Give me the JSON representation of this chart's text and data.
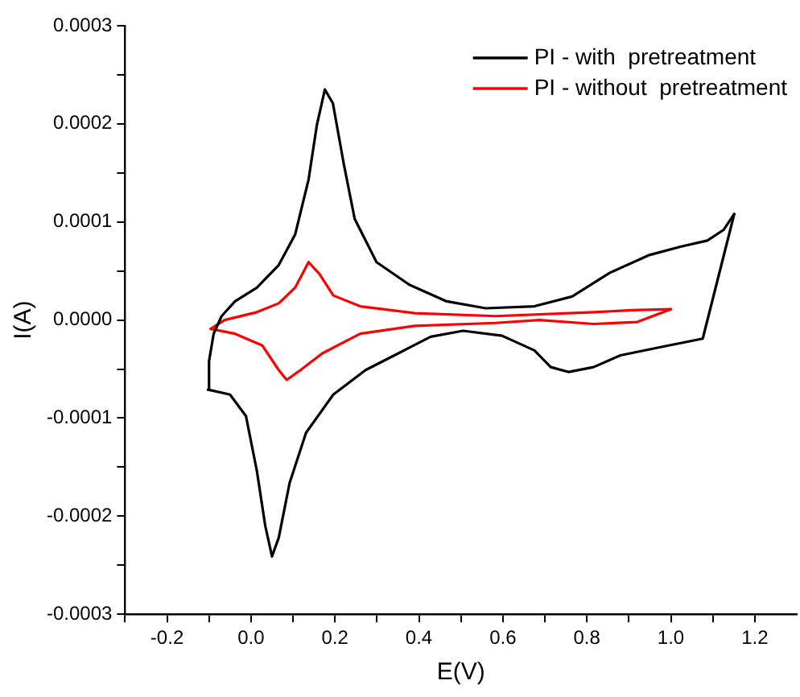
{
  "chart_data": {
    "type": "line",
    "xlabel": "E(V)",
    "ylabel": "I(A)",
    "legend": "top right",
    "grid": false,
    "marker": "none",
    "line_style": "solid",
    "xlim": [
      -0.3,
      1.3
    ],
    "xticks": [
      {
        "value": -0.3,
        "label": null
      },
      {
        "value": -0.2,
        "label": "-0.2"
      },
      {
        "value": -0.1,
        "label": null
      },
      {
        "value": 0,
        "label": "0.0"
      },
      {
        "value": 0.1,
        "label": null
      },
      {
        "value": 0.2,
        "label": "0.2"
      },
      {
        "value": 0.3,
        "label": null
      },
      {
        "value": 0.4,
        "label": "0.4"
      },
      {
        "value": 0.5,
        "label": null
      },
      {
        "value": 0.6,
        "label": "0.6"
      },
      {
        "value": 0.7,
        "label": null
      },
      {
        "value": 0.8,
        "label": "0.8"
      },
      {
        "value": 0.9,
        "label": null
      },
      {
        "value": 1.0,
        "label": "1.0"
      },
      {
        "value": 1.1,
        "label": null
      },
      {
        "value": 1.2,
        "label": "1.2"
      }
    ],
    "ylim": [
      -0.0003,
      0.0003
    ],
    "yticks": [
      {
        "value": -0.0003,
        "label": "-0.0003"
      },
      {
        "value": -0.00025,
        "label": null
      },
      {
        "value": -0.0002,
        "label": "-0.0002"
      },
      {
        "value": -0.00015,
        "label": null
      },
      {
        "value": -0.0001,
        "label": "-0.0001"
      },
      {
        "value": -5e-05,
        "label": null
      },
      {
        "value": 0,
        "label": "0.0000"
      },
      {
        "value": 5e-05,
        "label": null
      },
      {
        "value": 0.0001,
        "label": "0.0001"
      },
      {
        "value": 0.00015,
        "label": null
      },
      {
        "value": 0.0002,
        "label": "0.0002"
      },
      {
        "value": 0.00025,
        "label": null
      },
      {
        "value": 0.0003,
        "label": "0.0003"
      }
    ],
    "series": [
      {
        "name": "PI - with  pretreatment",
        "color": "#000000",
        "x": [
          -0.102,
          -0.1,
          -0.089,
          -0.07,
          -0.038,
          0.014,
          0.066,
          0.105,
          0.137,
          0.157,
          0.176,
          0.195,
          0.221,
          0.247,
          0.299,
          0.377,
          0.466,
          0.559,
          0.675,
          0.765,
          0.854,
          0.947,
          1.025,
          1.087,
          1.126,
          1.151
        ],
        "values": [
          -7.1e-05,
          -4.2e-05,
          -1.4e-05,
          4e-06,
          1.9e-05,
          3.3e-05,
          5.6e-05,
          8.7e-05,
          0.000143,
          0.000199,
          0.000235,
          0.000221,
          0.000159,
          0.000103,
          5.9e-05,
          3.6e-05,
          1.9e-05,
          1.2e-05,
          1.4e-05,
          2.4e-05,
          4.8e-05,
          6.6e-05,
          7.5e-05,
          8.1e-05,
          9.2e-05,
          0.000108
        ]
      },
      {
        "color": "#000000",
        "x": [
          -0.102,
          -0.05,
          -0.012,
          0.014,
          0.034,
          0.05,
          0.066,
          0.092,
          0.131,
          0.196,
          0.273,
          0.351,
          0.428,
          0.505,
          0.598,
          0.675,
          0.714,
          0.757,
          0.816,
          0.88,
          0.971,
          1.076,
          1.151
        ],
        "values": [
          -7.1e-05,
          -7.6e-05,
          -9.8e-05,
          -0.000154,
          -0.00021,
          -0.000241,
          -0.000222,
          -0.000166,
          -0.000115,
          -7.6e-05,
          -5.1e-05,
          -3.4e-05,
          -1.7e-05,
          -1.1e-05,
          -1.6e-05,
          -3.1e-05,
          -4.8e-05,
          -5.3e-05,
          -4.8e-05,
          -3.6e-05,
          -2.8e-05,
          -1.9e-05,
          0.000108
        ]
      },
      {
        "name": "PI - without  pretreatment",
        "color": "#ff0000",
        "x": [
          -0.096,
          -0.063,
          0.014,
          0.066,
          0.105,
          0.137,
          0.163,
          0.196,
          0.26,
          0.39,
          0.583,
          0.817,
          0.907,
          1.0
        ],
        "values": [
          -9e-06,
          0.0,
          8e-06,
          1.7e-05,
          3.3e-05,
          5.9e-05,
          4.7e-05,
          2.5e-05,
          1.4e-05,
          7e-06,
          4e-06,
          8e-06,
          1e-05,
          1.1e-05
        ]
      },
      {
        "color": "#ff0000",
        "x": [
          -0.096,
          -0.038,
          0.027,
          0.066,
          0.085,
          0.118,
          0.17,
          0.26,
          0.39,
          0.583,
          0.687,
          0.816,
          0.92,
          1.0
        ],
        "values": [
          -9e-06,
          -1.4e-05,
          -2.6e-05,
          -5.1e-05,
          -6.1e-05,
          -5.1e-05,
          -3.4e-05,
          -1.4e-05,
          -6e-06,
          -3e-06,
          0.0,
          -4e-06,
          -2e-06,
          1.1e-05
        ]
      }
    ]
  }
}
